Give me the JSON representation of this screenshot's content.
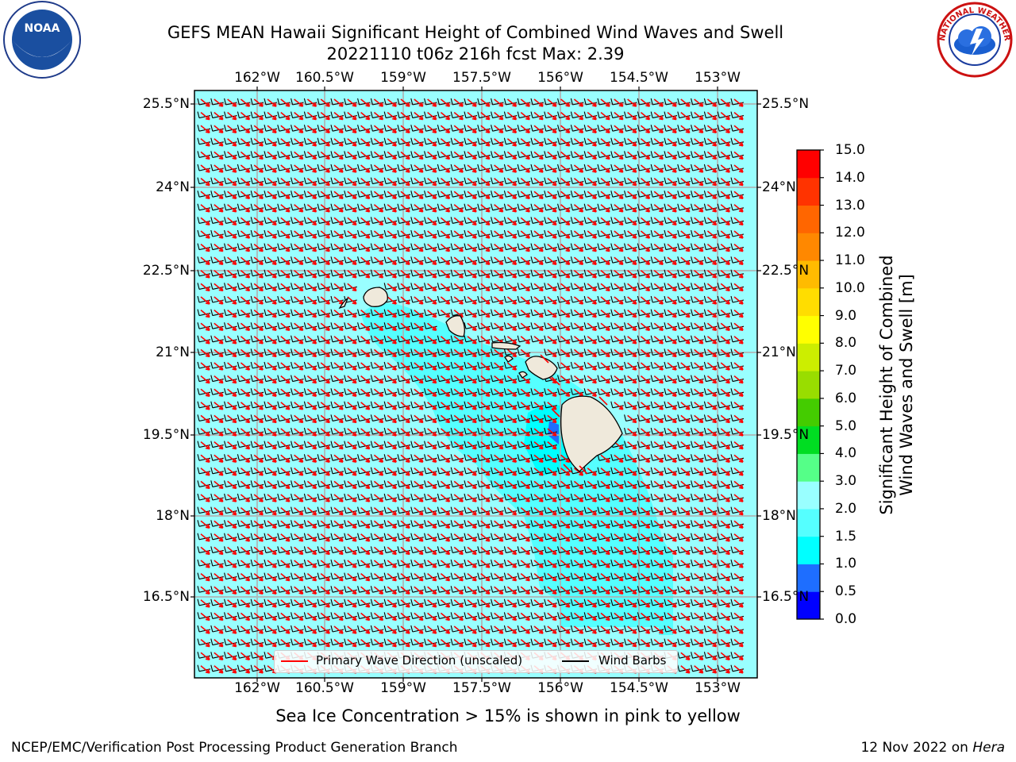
{
  "header": {
    "title_line1": "GEFS MEAN Hawaii Significant Height of Combined Wind Waves and Swell",
    "title_line2": "20221110 t06z 216h fcst   Max: 2.39"
  },
  "map": {
    "lon_ticks": [
      "162°W",
      "160.5°W",
      "159°W",
      "157.5°W",
      "156°W",
      "154.5°W",
      "153°W"
    ],
    "lat_ticks": [
      "25.5°N",
      "24°N",
      "22.5°N",
      "21°N",
      "19.5°N",
      "18°N",
      "16.5°N"
    ],
    "ocean_color": "#99ffff",
    "elevated_color": "#55ffff",
    "land_color": "#efe9db",
    "wave_arrow_color": "#ff0000",
    "wind_barb_color": "#000000"
  },
  "legend": {
    "wave_label": "Primary Wave Direction (unscaled)",
    "wind_label": "Wind Barbs"
  },
  "colorbar": {
    "title_line1": "Significant Height of Combined",
    "title_line2": "Wind Waves and Swell [m]",
    "levels": [
      "0.0",
      "0.5",
      "1.0",
      "1.5",
      "2.0",
      "3.0",
      "4.0",
      "5.0",
      "6.0",
      "7.0",
      "8.0",
      "9.0",
      "10.0",
      "11.0",
      "12.0",
      "13.0",
      "14.0",
      "15.0"
    ],
    "colors": [
      "#0000ff",
      "#1e6eff",
      "#00ffff",
      "#55ffff",
      "#99ffff",
      "#55ff88",
      "#00dd22",
      "#44cc00",
      "#99dd00",
      "#ccee00",
      "#ffff00",
      "#ffdd00",
      "#ffbb00",
      "#ff8800",
      "#ff6600",
      "#ff3300",
      "#ff0000"
    ]
  },
  "footer": {
    "sea_ice_note": "Sea Ice Concentration > 15% is shown in pink to yellow",
    "branch": "NCEP/EMC/Verification Post Processing Product Generation Branch",
    "date_prefix": "12 Nov 2022 on ",
    "machine": "Hera"
  },
  "logos": {
    "noaa_text": "NOAA",
    "nws_text": "NATIONAL WEATHER SERVICE"
  }
}
